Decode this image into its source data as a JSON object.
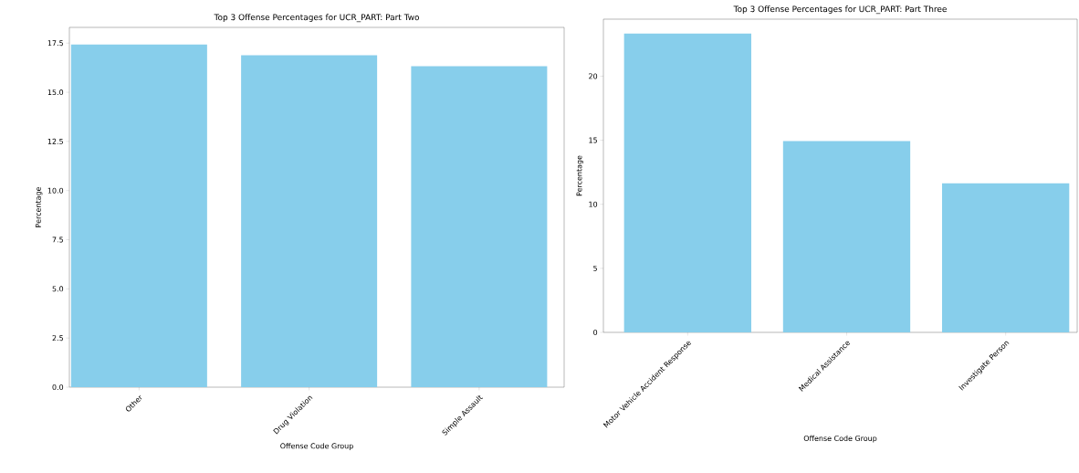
{
  "chart_data": [
    {
      "type": "bar",
      "title": "Top 3 Offense Percentages for UCR_PART: Part Two",
      "xlabel": "Offense Code Group",
      "ylabel": "Percentage",
      "categories": [
        "Other",
        "Drug Violation",
        "Simple Assault"
      ],
      "values": [
        17.43,
        16.88,
        16.33
      ],
      "color": "#87ceeb",
      "ylim": [
        0,
        18.3
      ],
      "yticks": [
        {
          "value": 0,
          "label": "0.0"
        },
        {
          "value": 2.5,
          "label": "2.5"
        },
        {
          "value": 5,
          "label": "5.0"
        },
        {
          "value": 7.5,
          "label": "7.5"
        },
        {
          "value": 10,
          "label": "10.0"
        },
        {
          "value": 12.5,
          "label": "12.5"
        },
        {
          "value": 15,
          "label": "15.0"
        },
        {
          "value": 17.5,
          "label": "17.5"
        }
      ]
    },
    {
      "type": "bar",
      "title": "Top 3 Offense Percentages for UCR_PART: Part Three",
      "xlabel": "Offense Code Group",
      "ylabel": "Percentage",
      "categories": [
        "Motor Vehicle Accident Response",
        "Medical Assistance",
        "Investigate Person"
      ],
      "values": [
        23.32,
        14.93,
        11.63
      ],
      "color": "#87ceeb",
      "ylim": [
        0,
        24.45
      ],
      "yticks": [
        0,
        5,
        10,
        15,
        20
      ]
    }
  ]
}
